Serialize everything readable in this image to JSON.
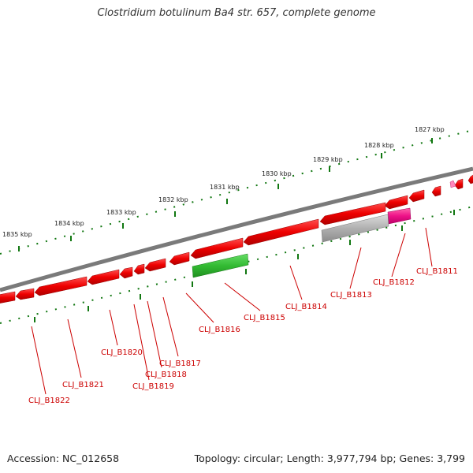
{
  "title": "Clostridium botulinum Ba4 str. 657, complete genome",
  "accession": "Accession: NC_012658",
  "topology": "Topology: circular; Length: 3,977,794 bp; Genes: 3,799",
  "scale_labels": [
    "1827 kbp",
    "1828 kbp",
    "1829 kbp",
    "1830 kbp",
    "1831 kbp",
    "1832 kbp",
    "1833 kbp",
    "1834 kbp",
    "1835 kbp"
  ],
  "gene_labels": [
    "CLJ_B1811",
    "CLJ_B1812",
    "CLJ_B1813",
    "CLJ_B1814",
    "CLJ_B1815",
    "CLJ_B1816",
    "CLJ_B1817",
    "CLJ_B1818",
    "CLJ_B1819",
    "CLJ_B1820",
    "CLJ_B1821",
    "CLJ_B1822"
  ],
  "colors": {
    "backbone": "#7a7a7a",
    "cds": "#ee0000",
    "rna": "#ee2277",
    "green_feature": "#33bb33",
    "grey_feature": "#aaaaaa",
    "tick": "#117711",
    "label": "#cc0000"
  }
}
